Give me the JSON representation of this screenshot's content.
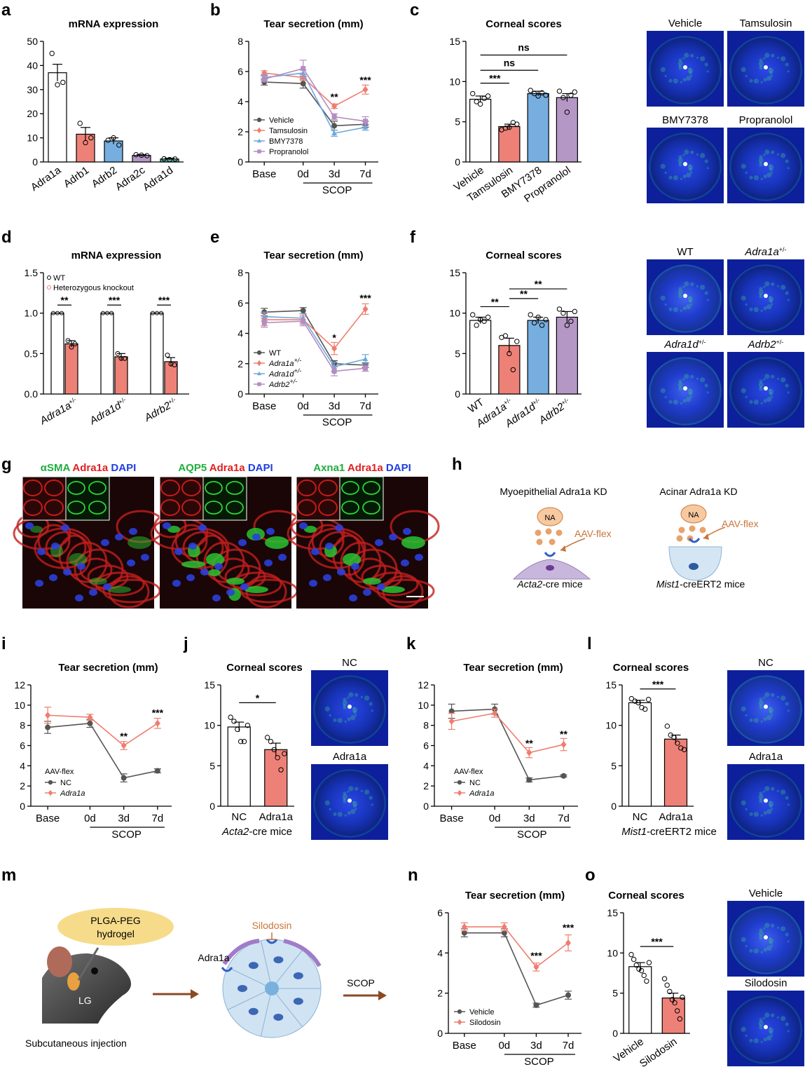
{
  "panels": {
    "a": "a",
    "b": "b",
    "c": "c",
    "d": "d",
    "e": "e",
    "f": "f",
    "g": "g",
    "h": "h",
    "i": "i",
    "j": "j",
    "k": "k",
    "l": "l",
    "m": "m",
    "n": "n",
    "o": "o"
  },
  "colors": {
    "vehicle": "#555555",
    "tamsulosin": "#ef7d6e",
    "bmy": "#6fa8dc",
    "propranolol": "#b48cc0",
    "bar_white": "#ffffff",
    "bar_red": "#ee8177",
    "bar_blue": "#76aee0",
    "bar_purple": "#b597c6",
    "bar_gray": "#8f8f8f",
    "bar_teal": "#5cb8a8"
  },
  "texts": {
    "scop": "SCOP",
    "acta2_mice_em": "Acta2",
    "acta2_mice_rest": "-cre mice",
    "mist1_mice_em": "Mist1",
    "mist1_mice_rest": "-creERT2 mice",
    "aav_flex": "AAV-flex",
    "nc": "NC",
    "adra1a": "Adra1a"
  },
  "images": {
    "c": [
      "Vehicle",
      "Tamsulosin",
      "BMY7378",
      "Propranolol"
    ],
    "f": [
      "WT",
      "Adra1a+/-",
      "Adra1d+/-",
      "Adrb2+/-"
    ],
    "j": [
      "NC",
      "Adra1a"
    ],
    "l": [
      "NC",
      "Adra1a"
    ],
    "o": [
      "Vehicle",
      "Silodosin"
    ]
  },
  "g": {
    "titles": [
      [
        {
          "t": "αSMA",
          "c": "#1fae3c"
        },
        {
          "t": " Adra1a",
          "c": "#e02020"
        },
        {
          "t": " DAPI",
          "c": "#1f3fe0"
        }
      ],
      [
        {
          "t": "AQP5",
          "c": "#1fae3c"
        },
        {
          "t": " Adra1a",
          "c": "#e02020"
        },
        {
          "t": " DAPI",
          "c": "#1f3fe0"
        }
      ],
      [
        {
          "t": "Axna1",
          "c": "#1fae3c"
        },
        {
          "t": " Adra1a",
          "c": "#e02020"
        },
        {
          "t": " DAPI",
          "c": "#1f3fe0"
        }
      ]
    ]
  },
  "h": {
    "left_title": "Myoepithelial  Adra1a KD",
    "right_title": "Acinar Adra1a KD",
    "na": "NA",
    "aav": "AAV-flex",
    "left_mice_em": "Acta2",
    "left_mice_rest": "-cre mice",
    "right_mice_em": "Mist1",
    "right_mice_rest": "-creERT2 mice"
  },
  "m": {
    "hydrogel": [
      "PLGA-PEG",
      "hydrogel"
    ],
    "lg": "LG",
    "injection": "Subcutaneous injection",
    "adra1a": "Adra1a",
    "silodosin": "Silodosin",
    "scop": "SCOP"
  },
  "chart_data": [
    {
      "id": "a",
      "type": "bar",
      "title": "mRNA expression",
      "categories": [
        "Adra1a",
        "Adrb1",
        "Adrb2",
        "Adra2c",
        "Adra1d"
      ],
      "values": [
        37,
        11.5,
        8.7,
        2.7,
        1.2
      ],
      "errors": [
        3.5,
        2.8,
        1.3,
        0.3,
        0.3
      ],
      "points": [
        [
          45,
          32,
          33
        ],
        [
          16,
          8,
          10
        ],
        [
          9,
          10,
          7
        ],
        [
          3,
          2.8,
          2.6
        ],
        [
          1.3,
          1.0,
          1.2
        ]
      ],
      "yticks": [
        0,
        10,
        20,
        30,
        40,
        50
      ],
      "ylim": [
        0,
        50
      ]
    },
    {
      "id": "b",
      "type": "line",
      "title": "Tear secretion (mm)",
      "x": [
        "Base",
        "0d",
        "3d",
        "7d"
      ],
      "yticks": [
        0,
        2,
        4,
        6,
        8
      ],
      "ylim": [
        0,
        8
      ],
      "series": [
        {
          "name": "Vehicle",
          "values": [
            5.3,
            5.2,
            2.4,
            2.5
          ],
          "err": [
            0.2,
            0.3,
            0.3,
            0.2
          ]
        },
        {
          "name": "Tamsulosin",
          "values": [
            5.9,
            5.6,
            3.7,
            4.8
          ],
          "err": [
            0.15,
            0.2,
            0.15,
            0.3
          ]
        },
        {
          "name": "BMY7378",
          "values": [
            5.6,
            5.9,
            1.9,
            2.3
          ],
          "err": [
            0.2,
            0.2,
            0.2,
            0.2
          ]
        },
        {
          "name": "Propranolol",
          "values": [
            5.5,
            6.2,
            3.0,
            2.7
          ],
          "err": [
            0.2,
            0.55,
            0.2,
            0.3
          ]
        }
      ],
      "annotations": [
        {
          "x": "3d",
          "y": 4.1,
          "text": "**"
        },
        {
          "x": "7d",
          "y": 5.2,
          "text": "***"
        }
      ]
    },
    {
      "id": "c",
      "type": "bar",
      "title": "Corneal scores",
      "categories": [
        "Vehicle",
        "Tamsulosin",
        "BMY7378",
        "Propranolol"
      ],
      "values": [
        7.8,
        4.4,
        8.5,
        8.0
      ],
      "errors": [
        0.4,
        0.3,
        0.3,
        0.5
      ],
      "points": [
        [
          8.5,
          7.5,
          7.2,
          7.9,
          8.2
        ],
        [
          4.0,
          4.2,
          4.3,
          4.9,
          4.7
        ],
        [
          8.9,
          8.5,
          8.2,
          8.6,
          8.3
        ],
        [
          8.8,
          8.0,
          6.2,
          8.3,
          8.7
        ]
      ],
      "yticks": [
        0,
        5,
        10,
        15
      ],
      "ylim": [
        0,
        15
      ],
      "brackets": [
        {
          "from": 0,
          "to": 1,
          "y": 9.8,
          "text": "***"
        },
        {
          "from": 0,
          "to": 2,
          "y": 11.4,
          "text": "ns"
        },
        {
          "from": 0,
          "to": 3,
          "y": 13.3,
          "text": "ns"
        }
      ]
    },
    {
      "id": "d",
      "type": "bar",
      "title": "mRNA expression",
      "categories": [
        "Adra1a+/-",
        "Adra1d+/-",
        "Adrb2+/-"
      ],
      "legend": [
        "WT",
        "Heterozygous knockout"
      ],
      "wt": [
        1,
        1,
        1
      ],
      "ko": [
        0.62,
        0.46,
        0.4
      ],
      "ko_err": [
        0.04,
        0.04,
        0.05
      ],
      "ko_points": [
        [
          0.66,
          0.58,
          0.62
        ],
        [
          0.5,
          0.44,
          0.44
        ],
        [
          0.48,
          0.37,
          0.36
        ]
      ],
      "yticks": [
        0,
        0.5,
        1.0,
        1.5
      ],
      "ylim": [
        0,
        1.5
      ],
      "sig": [
        "**",
        "***",
        "***"
      ]
    },
    {
      "id": "e",
      "type": "line",
      "title": "Tear secretion (mm)",
      "x": [
        "Base",
        "0d",
        "3d",
        "7d"
      ],
      "yticks": [
        0,
        2,
        4,
        6,
        8
      ],
      "ylim": [
        0,
        8
      ],
      "series": [
        {
          "name": "WT",
          "values": [
            5.4,
            5.5,
            2.0,
            1.9
          ],
          "err": [
            0.25,
            0.2,
            0.2,
            0.15
          ]
        },
        {
          "name": "Adra1a+/-",
          "values": [
            4.9,
            4.9,
            3.0,
            5.6
          ],
          "err": [
            0.4,
            0.3,
            0.4,
            0.35
          ]
        },
        {
          "name": "Adra1d+/-",
          "values": [
            5.1,
            5.0,
            1.8,
            2.3
          ],
          "err": [
            0.3,
            0.3,
            0.3,
            0.3
          ]
        },
        {
          "name": "Adrb2+/-",
          "values": [
            4.7,
            4.8,
            1.5,
            1.7
          ],
          "err": [
            0.3,
            0.3,
            0.3,
            0.2
          ]
        }
      ],
      "annotations": [
        {
          "x": "3d",
          "y": 3.5,
          "text": "*"
        },
        {
          "x": "7d",
          "y": 6.1,
          "text": "***"
        }
      ]
    },
    {
      "id": "f",
      "type": "bar",
      "title": "Corneal scores",
      "categories": [
        "WT",
        "Adra1a+/-",
        "Adra1d+/-",
        "Adrb2+/-"
      ],
      "values": [
        9.1,
        6.0,
        9.1,
        9.5
      ],
      "errors": [
        0.4,
        0.9,
        0.4,
        0.7
      ],
      "points": [
        [
          9.8,
          8.5,
          9.2,
          9.0,
          9.5
        ],
        [
          7.0,
          7.2,
          5.0,
          3.0,
          6.5
        ],
        [
          9.8,
          8.8,
          9.5,
          8.5,
          9.2
        ],
        [
          10.5,
          10.0,
          8.5,
          9.0,
          10.2
        ]
      ],
      "yticks": [
        0,
        5,
        10,
        15
      ],
      "ylim": [
        0,
        15
      ],
      "brackets": [
        {
          "from": 0,
          "to": 1,
          "y": 10.8,
          "text": "**"
        },
        {
          "from": 1,
          "to": 2,
          "y": 11.8,
          "text": "**"
        },
        {
          "from": 1,
          "to": 3,
          "y": 13.0,
          "text": "**"
        }
      ]
    },
    {
      "id": "i",
      "type": "line",
      "title": "Tear secretion (mm)",
      "x": [
        "Base",
        "0d",
        "3d",
        "7d"
      ],
      "yticks": [
        0,
        2,
        4,
        6,
        8,
        10,
        12
      ],
      "ylim": [
        0,
        12
      ],
      "legend_title": "AAV-flex",
      "series": [
        {
          "name": "NC",
          "values": [
            7.8,
            8.2,
            2.8,
            3.5
          ],
          "err": [
            0.6,
            0.4,
            0.4,
            0.2
          ]
        },
        {
          "name": "Adra1a",
          "values": [
            9.0,
            8.8,
            6.0,
            8.2
          ],
          "err": [
            0.8,
            0.3,
            0.4,
            0.5
          ]
        }
      ],
      "annotations": [
        {
          "x": "3d",
          "y": 6.6,
          "text": "**"
        },
        {
          "x": "7d",
          "y": 8.9,
          "text": "***"
        }
      ]
    },
    {
      "id": "j",
      "type": "bar",
      "title": "Corneal scores",
      "categories": [
        "NC",
        "Adra1a"
      ],
      "values": [
        9.8,
        7.0
      ],
      "errors": [
        0.6,
        0.8
      ],
      "points": [
        [
          11.0,
          10.5,
          9.5,
          8.0,
          8.0,
          10.0
        ],
        [
          8.5,
          8.0,
          7.0,
          6.0,
          4.5,
          6.5
        ]
      ],
      "yticks": [
        0,
        5,
        10,
        15
      ],
      "ylim": [
        0,
        15
      ],
      "brackets": [
        {
          "from": 0,
          "to": 1,
          "y": 12.8,
          "text": "*"
        }
      ]
    },
    {
      "id": "k",
      "type": "line",
      "title": "Tear secretion (mm)",
      "x": [
        "Base",
        "0d",
        "3d",
        "7d"
      ],
      "yticks": [
        0,
        2,
        4,
        6,
        8,
        10,
        12
      ],
      "ylim": [
        0,
        12
      ],
      "legend_title": "AAV-flex",
      "series": [
        {
          "name": "NC",
          "values": [
            9.4,
            9.6,
            2.6,
            3.0
          ],
          "err": [
            0.7,
            0.5,
            0.2,
            0.1
          ]
        },
        {
          "name": "Adra1a",
          "values": [
            8.4,
            9.2,
            5.3,
            6.1
          ],
          "err": [
            0.8,
            0.4,
            0.5,
            0.6
          ]
        }
      ],
      "annotations": [
        {
          "x": "3d",
          "y": 5.9,
          "text": "**"
        },
        {
          "x": "7d",
          "y": 6.8,
          "text": "**"
        }
      ]
    },
    {
      "id": "l",
      "type": "bar",
      "title": "Corneal scores",
      "categories": [
        "NC",
        "Adra1a"
      ],
      "values": [
        12.8,
        8.3
      ],
      "errors": [
        0.3,
        0.5
      ],
      "points": [
        [
          13.3,
          13.0,
          12.8,
          12.2,
          12.0,
          13.2
        ],
        [
          9.9,
          8.8,
          8.5,
          7.8,
          7.2,
          7.0
        ]
      ],
      "yticks": [
        0,
        5,
        10,
        15
      ],
      "ylim": [
        0,
        15
      ],
      "brackets": [
        {
          "from": 0,
          "to": 1,
          "y": 14.5,
          "text": "***"
        }
      ]
    },
    {
      "id": "n",
      "type": "line",
      "title": "Tear secretion (mm)",
      "x": [
        "Base",
        "0d",
        "3d",
        "7d"
      ],
      "yticks": [
        0,
        2,
        4,
        6
      ],
      "ylim": [
        0,
        6
      ],
      "series": [
        {
          "name": "Vehicle",
          "values": [
            5.0,
            5.0,
            1.4,
            1.9
          ],
          "err": [
            0.2,
            0.2,
            0.1,
            0.2
          ]
        },
        {
          "name": "Silodosin",
          "values": [
            5.3,
            5.3,
            3.3,
            4.5
          ],
          "err": [
            0.2,
            0.2,
            0.2,
            0.4
          ]
        }
      ],
      "annotations": [
        {
          "x": "3d",
          "y": 3.7,
          "text": "***"
        },
        {
          "x": "7d",
          "y": 5.1,
          "text": "***"
        }
      ]
    },
    {
      "id": "o",
      "type": "bar",
      "title": "Corneal scores",
      "categories": [
        "Vehicle",
        "Silodosin"
      ],
      "values": [
        8.3,
        4.4
      ],
      "errors": [
        0.5,
        0.6
      ],
      "points": [
        [
          9.8,
          9.2,
          8.5,
          8.0,
          7.8,
          7.2,
          6.5,
          8.8
        ],
        [
          6.8,
          6.0,
          5.2,
          4.2,
          3.8,
          2.8,
          1.8,
          4.5
        ]
      ],
      "yticks": [
        0,
        5,
        10,
        15
      ],
      "ylim": [
        0,
        15
      ],
      "brackets": [
        {
          "from": 0,
          "to": 1,
          "y": 10.8,
          "text": "***"
        }
      ]
    }
  ]
}
